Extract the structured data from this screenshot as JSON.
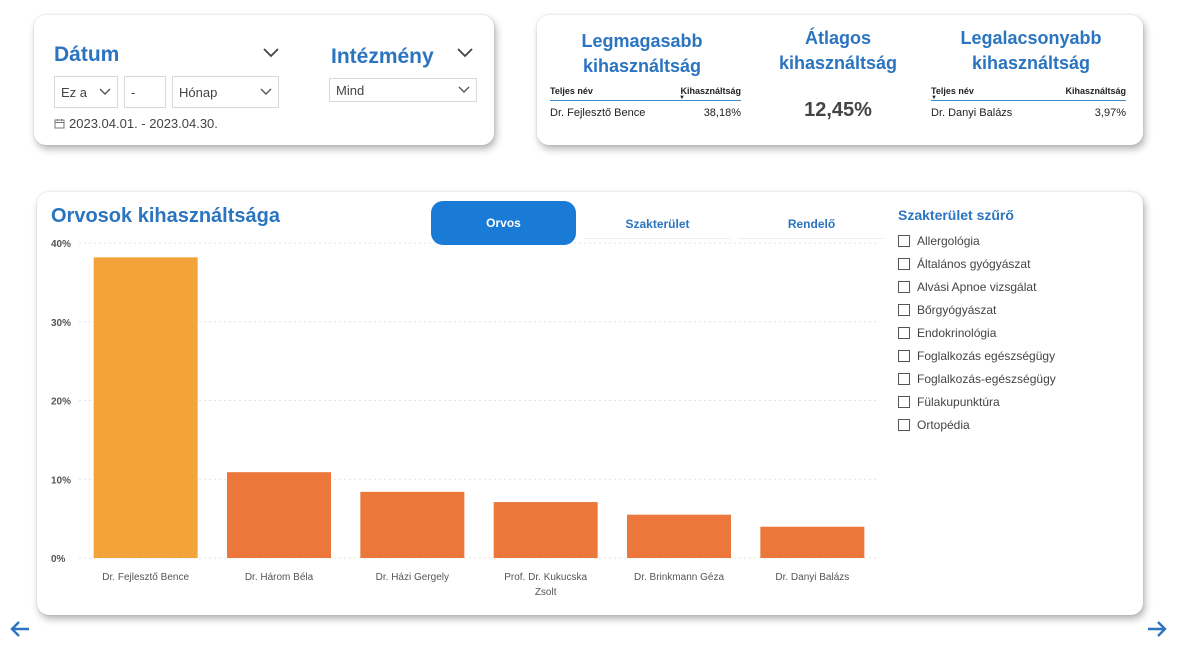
{
  "filters": {
    "date_label": "Dátum",
    "institution_label": "Intézmény",
    "relative_mode": "Ez a",
    "relative_count": "-",
    "relative_unit": "Hónap",
    "institution_value": "Mind",
    "date_range": "2023.04.01. - 2023.04.30."
  },
  "kpi": {
    "highest": {
      "title_line1": "Legmagasabb",
      "title_line2": "kihasználtság",
      "col_name": "Teljes név",
      "col_value": "Kihasználtság",
      "row_name": "Dr. Fejlesztő Bence",
      "row_value": "38,18%"
    },
    "average": {
      "title_line1": "Átlagos",
      "title_line2": "kihasználtság",
      "value": "12,45%"
    },
    "lowest": {
      "title_line1": "Legalacsonyabb",
      "title_line2": "kihasználtság",
      "col_name": "Teljes név",
      "col_value": "Kihasználtság",
      "row_name": "Dr. Danyi Balázs",
      "row_value": "3,97%"
    }
  },
  "main": {
    "title": "Orvosok kihasználtsága",
    "tabs": [
      {
        "label": "Orvos",
        "active": true
      },
      {
        "label": "Szakterület",
        "active": false
      },
      {
        "label": "Rendelő",
        "active": false
      }
    ]
  },
  "slicer": {
    "title": "Szakterület szűrő",
    "items": [
      "Allergológia",
      "Általános gyógyászat",
      "Alvási Apnoe vizsgálat",
      "Bőrgyógyászat",
      "Endokrinológia",
      "Foglalkozás egészségügy",
      "Foglalkozás-egészségügy",
      "Fülakupunktúra",
      "Ortopédia"
    ]
  },
  "chart_data": {
    "type": "bar",
    "categories": [
      "Dr. Fejlesztő Bence",
      "Dr. Három Béla",
      "Dr. Házi Gergely",
      "Prof. Dr. Kukucska Zsolt",
      "Dr. Brinkmann Géza",
      "Dr. Danyi Balázs"
    ],
    "category_lines": [
      [
        "Dr. Fejlesztő Bence"
      ],
      [
        "Dr. Három Béla"
      ],
      [
        "Dr. Házi Gergely"
      ],
      [
        "Prof. Dr. Kukucska",
        "Zsolt"
      ],
      [
        "Dr. Brinkmann Géza"
      ],
      [
        "Dr. Danyi Balázs"
      ]
    ],
    "values": [
      38.18,
      10.9,
      8.4,
      7.1,
      5.5,
      3.97
    ],
    "ylim": [
      0,
      40
    ],
    "yticks": [
      "0%",
      "10%",
      "20%",
      "30%",
      "40%"
    ],
    "grid": true,
    "highlight_color": "#f2a33a",
    "bar_color": "#eb773b"
  },
  "icons": {
    "calendar": "calendar-icon",
    "back": "arrow-left-icon",
    "forward": "arrow-right-icon"
  }
}
